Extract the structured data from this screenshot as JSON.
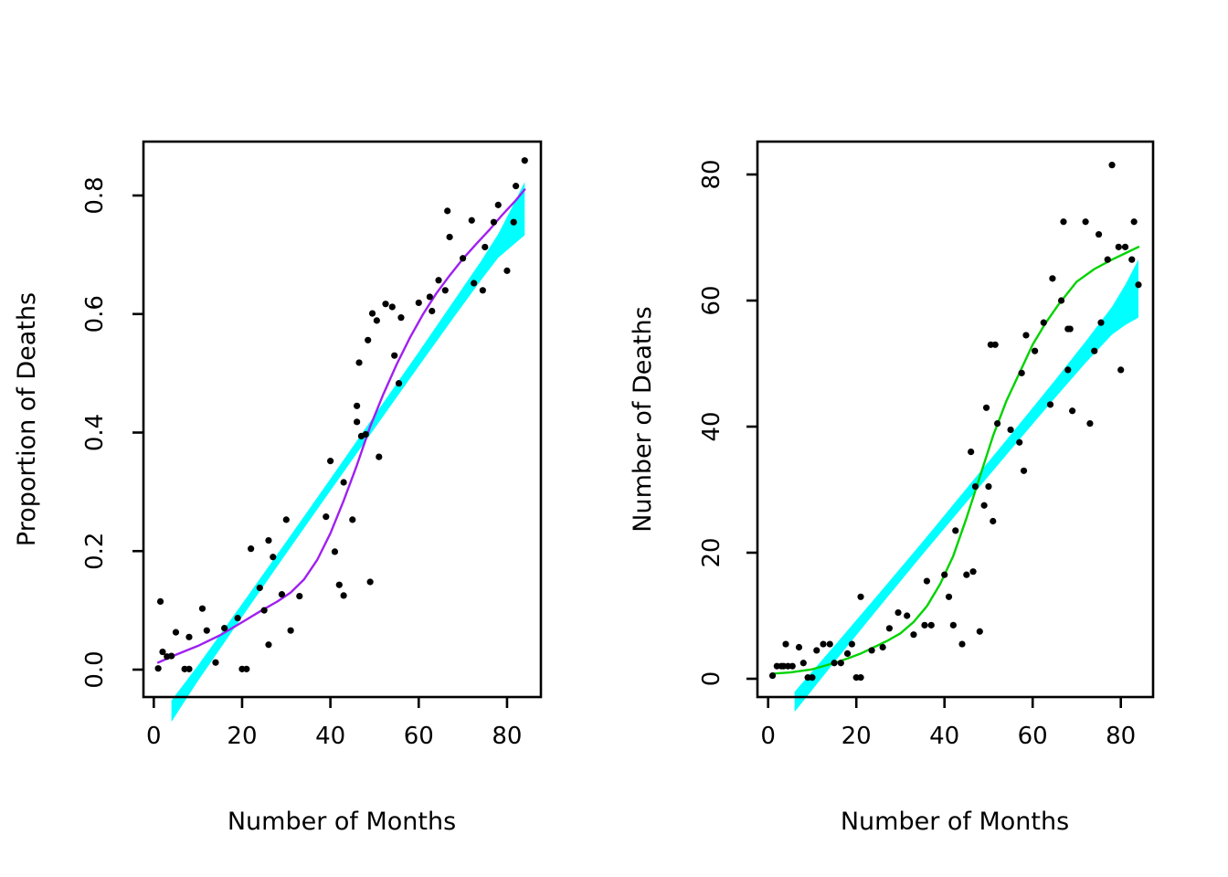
{
  "figure": {
    "background": "#ffffff",
    "point_color": "#000000",
    "band_color": "#00ffff"
  },
  "chart_data": [
    {
      "type": "scatter",
      "title": "",
      "xlabel": "Number of Months",
      "ylabel": "Proportion of Deaths",
      "xlim": [
        -2.3,
        87.6
      ],
      "ylim": [
        -0.046,
        0.891
      ],
      "grid": false,
      "x_ticks": {
        "values": [
          0,
          20,
          40,
          60,
          80
        ],
        "labels": [
          "0",
          "20",
          "40",
          "60",
          "80"
        ]
      },
      "y_ticks": {
        "values": [
          0.0,
          0.2,
          0.4,
          0.6,
          0.8
        ],
        "labels": [
          "0.0",
          "0.2",
          "0.4",
          "0.6",
          "0.8"
        ]
      },
      "points": {
        "x": [
          1,
          1.5,
          2,
          3,
          4,
          5,
          7,
          8,
          8,
          11,
          12,
          14,
          16,
          19,
          20,
          21,
          22,
          24,
          25,
          26,
          26,
          27,
          29,
          30,
          31,
          33,
          39,
          40,
          41,
          42,
          43,
          43,
          45,
          46,
          46,
          47,
          48,
          49,
          51,
          46.5,
          48.5,
          49.5,
          50.5,
          52.5,
          54,
          54.5,
          55.5,
          56,
          60,
          62.5,
          63,
          64.5,
          66,
          66.5,
          67,
          70,
          72,
          72.5,
          74.5,
          75,
          77,
          78,
          80,
          81.5,
          82,
          84
        ],
        "y": [
          0.002,
          0.115,
          0.03,
          0.022,
          0.023,
          0.063,
          0.001,
          0.001,
          0.055,
          0.103,
          0.066,
          0.012,
          0.07,
          0.087,
          0.001,
          0.001,
          0.204,
          0.138,
          0.1,
          0.218,
          0.042,
          0.19,
          0.127,
          0.253,
          0.066,
          0.124,
          0.258,
          0.352,
          0.199,
          0.143,
          0.316,
          0.125,
          0.253,
          0.418,
          0.445,
          0.394,
          0.397,
          0.148,
          0.359,
          0.518,
          0.556,
          0.601,
          0.589,
          0.617,
          0.612,
          0.53,
          0.483,
          0.594,
          0.619,
          0.629,
          0.605,
          0.657,
          0.64,
          0.774,
          0.73,
          0.694,
          0.758,
          0.652,
          0.64,
          0.713,
          0.755,
          0.784,
          0.673,
          0.755,
          0.816,
          0.859
        ]
      },
      "smooth_line": {
        "name": "smooth-fit",
        "color": "#a020f0",
        "x": [
          1,
          5,
          10,
          15,
          20,
          24,
          28,
          31,
          34,
          37,
          40,
          43,
          46,
          49,
          52,
          55,
          58,
          61,
          64,
          67,
          70,
          73,
          76,
          79,
          82,
          84
        ],
        "y": [
          0.012,
          0.025,
          0.04,
          0.058,
          0.08,
          0.098,
          0.115,
          0.13,
          0.152,
          0.185,
          0.23,
          0.285,
          0.345,
          0.41,
          0.465,
          0.515,
          0.56,
          0.6,
          0.635,
          0.665,
          0.693,
          0.718,
          0.742,
          0.768,
          0.792,
          0.81
        ]
      },
      "band": {
        "name": "linear-fit-confidence-band",
        "color": "#00ffff",
        "x": [
          4,
          10,
          20,
          30,
          40,
          50,
          60,
          68,
          74,
          78,
          81,
          84
        ],
        "upper": [
          -0.052,
          0.007,
          0.111,
          0.216,
          0.322,
          0.429,
          0.536,
          0.623,
          0.688,
          0.735,
          0.778,
          0.823
        ],
        "lower": [
          -0.088,
          -0.019,
          0.089,
          0.196,
          0.302,
          0.407,
          0.512,
          0.595,
          0.656,
          0.695,
          0.714,
          0.733
        ]
      }
    },
    {
      "type": "scatter",
      "title": "",
      "xlabel": "Number of Months",
      "ylabel": "Number of Deaths",
      "xlim": [
        -2.4,
        87.3
      ],
      "ylim": [
        -2.9,
        85.2
      ],
      "grid": false,
      "x_ticks": {
        "values": [
          0,
          20,
          40,
          60,
          80
        ],
        "labels": [
          "0",
          "20",
          "40",
          "60",
          "80"
        ]
      },
      "y_ticks": {
        "values": [
          0,
          20,
          40,
          60,
          80
        ],
        "labels": [
          "0",
          "20",
          "40",
          "60",
          "80"
        ]
      },
      "points": {
        "x": [
          1,
          2,
          3,
          3.5,
          4.5,
          5.5,
          4,
          7,
          8,
          9,
          10,
          11,
          12.5,
          14,
          15,
          16.5,
          18,
          19,
          20,
          21,
          21,
          23.5,
          26,
          27.5,
          29.5,
          31.5,
          33,
          35.5,
          37,
          36,
          40,
          41,
          42,
          42.5,
          44,
          45,
          46,
          46.5,
          47,
          48,
          49,
          49.5,
          50,
          50.5,
          51.5,
          52,
          51,
          55,
          57,
          57.5,
          58,
          58.5,
          60.5,
          62.5,
          64,
          64.5,
          66.5,
          67,
          68,
          68.5,
          68,
          69,
          72,
          73,
          74,
          75,
          75.5,
          77,
          78,
          79.5,
          80,
          81,
          82.5,
          83,
          84
        ],
        "y": [
          0.5,
          2,
          2,
          2,
          2,
          2,
          5.5,
          5,
          2.5,
          0.2,
          0.2,
          4.5,
          5.5,
          5.5,
          2.5,
          2.5,
          4,
          5.5,
          0.2,
          0.2,
          13,
          4.5,
          5,
          8,
          10.5,
          10,
          7,
          8.5,
          8.5,
          15.5,
          16.5,
          13,
          8.5,
          23.5,
          5.5,
          16.5,
          36,
          17,
          30.5,
          7.5,
          27.5,
          43,
          30.5,
          53,
          53,
          40.5,
          25,
          39.5,
          37.5,
          48.5,
          33,
          54.5,
          52,
          56.5,
          43.5,
          63.5,
          60,
          72.5,
          55.5,
          55.5,
          49,
          42.5,
          72.5,
          40.5,
          52,
          70.5,
          56.5,
          66.5,
          81.5,
          68.5,
          49,
          68.5,
          66.5,
          72.5,
          62.5
        ]
      },
      "smooth_line": {
        "name": "smooth-fit",
        "color": "#00d300",
        "x": [
          1,
          5,
          10,
          15,
          18,
          21,
          24,
          27,
          30,
          33,
          36,
          39,
          42,
          45,
          48,
          51,
          54,
          57,
          60,
          63,
          66,
          70,
          74,
          78,
          81,
          84
        ],
        "y": [
          0.8,
          1.0,
          1.5,
          2.5,
          3.2,
          4.0,
          5.0,
          6.0,
          7.2,
          9.0,
          11.5,
          15.0,
          19.5,
          25.5,
          32.0,
          38.5,
          44.0,
          48.5,
          53.0,
          56.5,
          59.5,
          63.0,
          65.0,
          66.5,
          67.5,
          68.5
        ]
      },
      "band": {
        "name": "linear-fit-confidence-band",
        "color": "#00ffff",
        "x": [
          6,
          15,
          25,
          35,
          45,
          55,
          65,
          72,
          78,
          81,
          84
        ],
        "upper": [
          -2.06,
          5.2,
          13.4,
          21.7,
          30.2,
          38.7,
          47.3,
          53.5,
          59.0,
          62.5,
          66.5
        ],
        "lower": [
          -5.26,
          2.6,
          11.2,
          19.7,
          28.0,
          36.3,
          44.5,
          50.1,
          54.6,
          56.1,
          57.3
        ]
      }
    }
  ]
}
